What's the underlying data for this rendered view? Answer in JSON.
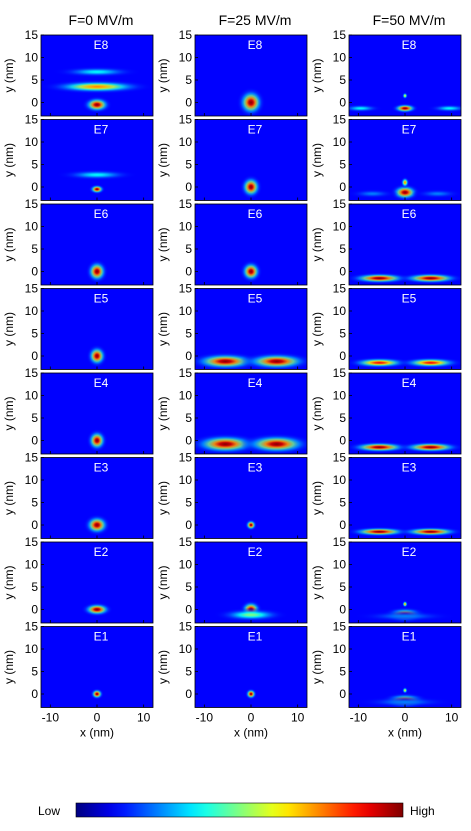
{
  "chart_data": {
    "type": "heatmap",
    "columns": [
      "F=0 MV/m",
      "F=25 MV/m",
      "F=50 MV/m"
    ],
    "rows": [
      "E8",
      "E7",
      "E6",
      "E5",
      "E4",
      "E3",
      "E2",
      "E1"
    ],
    "xlabel": "x (nm)",
    "ylabel": "y (nm)",
    "xlim": [
      -12,
      12
    ],
    "ylim": [
      -3,
      15
    ],
    "x_ticks": [
      "-10",
      "0",
      "10"
    ],
    "y_ticks": [
      "15",
      "10",
      "5",
      "0"
    ],
    "colorbar": {
      "low": "Low",
      "high": "High"
    },
    "panels": [
      [
        {
          "label": "E8",
          "blobs": [
            {
              "x": 0,
              "y": -0.5,
              "sx": 2.0,
              "sy": 1.2,
              "a": 1.0
            },
            {
              "x": 0,
              "y": 3.5,
              "sx": 7.5,
              "sy": 1.0,
              "a": 0.75
            },
            {
              "x": 0,
              "y": 6.8,
              "sx": 6.0,
              "sy": 0.8,
              "a": 0.35
            },
            {
              "x": 0,
              "y": 9.5,
              "sx": 5.0,
              "sy": 0.8,
              "a": 0.15
            }
          ]
        },
        {
          "label": "E7",
          "blobs": [
            {
              "x": 0,
              "y": -0.5,
              "sx": 1.1,
              "sy": 0.7,
              "a": 1.0
            },
            {
              "x": 0,
              "y": 2.7,
              "sx": 5.5,
              "sy": 0.8,
              "a": 0.35
            },
            {
              "x": 0,
              "y": 5.2,
              "sx": 5.0,
              "sy": 0.8,
              "a": 0.15
            }
          ]
        },
        {
          "label": "E6",
          "blobs": [
            {
              "x": 0,
              "y": 0.0,
              "sx": 1.5,
              "sy": 1.7,
              "a": 1.0
            }
          ]
        },
        {
          "label": "E5",
          "blobs": [
            {
              "x": 0,
              "y": 0.0,
              "sx": 1.4,
              "sy": 1.6,
              "a": 1.0
            }
          ]
        },
        {
          "label": "E4",
          "blobs": [
            {
              "x": 0,
              "y": 0.0,
              "sx": 1.4,
              "sy": 1.6,
              "a": 1.0
            }
          ]
        },
        {
          "label": "E3",
          "blobs": [
            {
              "x": 0,
              "y": 0.0,
              "sx": 1.8,
              "sy": 1.5,
              "a": 1.0
            }
          ]
        },
        {
          "label": "E2",
          "blobs": [
            {
              "x": 0,
              "y": 0.0,
              "sx": 2.1,
              "sy": 1.0,
              "a": 1.0
            }
          ]
        },
        {
          "label": "E1",
          "blobs": [
            {
              "x": 0,
              "y": 0.0,
              "sx": 0.9,
              "sy": 0.8,
              "a": 1.0
            }
          ]
        }
      ],
      [
        {
          "label": "E8",
          "blobs": [
            {
              "x": 0,
              "y": 0.0,
              "sx": 1.9,
              "sy": 2.1,
              "a": 1.0
            }
          ]
        },
        {
          "label": "E7",
          "blobs": [
            {
              "x": 0,
              "y": 0.0,
              "sx": 1.5,
              "sy": 1.7,
              "a": 1.0
            }
          ]
        },
        {
          "label": "E6",
          "blobs": [
            {
              "x": 0,
              "y": 0.0,
              "sx": 1.5,
              "sy": 1.6,
              "a": 1.0
            }
          ]
        },
        {
          "label": "E5",
          "blobs": [
            {
              "x": -5.5,
              "y": -1.2,
              "sx": 5.0,
              "sy": 1.3,
              "a": 1.0
            },
            {
              "x": 5.5,
              "y": -1.2,
              "sx": 5.0,
              "sy": 1.3,
              "a": 1.0
            }
          ]
        },
        {
          "label": "E4",
          "blobs": [
            {
              "x": -5.5,
              "y": -0.8,
              "sx": 5.0,
              "sy": 1.5,
              "a": 1.0
            },
            {
              "x": 5.5,
              "y": -0.8,
              "sx": 5.0,
              "sy": 1.5,
              "a": 1.0
            }
          ]
        },
        {
          "label": "E3",
          "blobs": [
            {
              "x": 0,
              "y": 0.0,
              "sx": 0.8,
              "sy": 0.8,
              "a": 1.0
            }
          ]
        },
        {
          "label": "E2",
          "blobs": [
            {
              "x": 0,
              "y": 0.0,
              "sx": 1.5,
              "sy": 1.3,
              "a": 1.0
            },
            {
              "x": 0,
              "y": -1.2,
              "sx": 5.0,
              "sy": 1.0,
              "a": 0.45
            }
          ]
        },
        {
          "label": "E1",
          "blobs": [
            {
              "x": 0,
              "y": 0.0,
              "sx": 0.8,
              "sy": 0.8,
              "a": 1.0
            }
          ]
        }
      ],
      [
        {
          "label": "E8",
          "blobs": [
            {
              "x": 0,
              "y": -1.3,
              "sx": 1.8,
              "sy": 0.7,
              "a": 1.0
            },
            {
              "x": -9.5,
              "y": -1.3,
              "sx": 3.0,
              "sy": 0.6,
              "a": 0.35
            },
            {
              "x": 9.5,
              "y": -1.3,
              "sx": 3.0,
              "sy": 0.6,
              "a": 0.35
            },
            {
              "x": 0,
              "y": 1.5,
              "sx": 0.4,
              "sy": 0.5,
              "a": 0.6
            }
          ]
        },
        {
          "label": "E7",
          "blobs": [
            {
              "x": 0,
              "y": -1.2,
              "sx": 2.0,
              "sy": 1.2,
              "a": 1.0
            },
            {
              "x": 0,
              "y": 1.0,
              "sx": 0.6,
              "sy": 0.8,
              "a": 0.7
            },
            {
              "x": -7.0,
              "y": -1.5,
              "sx": 3.5,
              "sy": 0.7,
              "a": 0.22
            },
            {
              "x": 7.0,
              "y": -1.5,
              "sx": 3.5,
              "sy": 0.7,
              "a": 0.22
            }
          ]
        },
        {
          "label": "E6",
          "blobs": [
            {
              "x": -5.5,
              "y": -1.5,
              "sx": 4.5,
              "sy": 0.8,
              "a": 1.0
            },
            {
              "x": 5.5,
              "y": -1.5,
              "sx": 4.5,
              "sy": 0.8,
              "a": 1.0
            }
          ]
        },
        {
          "label": "E5",
          "blobs": [
            {
              "x": -5.5,
              "y": -1.5,
              "sx": 4.5,
              "sy": 0.8,
              "a": 0.9
            },
            {
              "x": 5.5,
              "y": -1.5,
              "sx": 4.5,
              "sy": 0.8,
              "a": 0.9
            }
          ]
        },
        {
          "label": "E4",
          "blobs": [
            {
              "x": -5.5,
              "y": -1.5,
              "sx": 4.5,
              "sy": 0.8,
              "a": 1.0
            },
            {
              "x": 5.5,
              "y": -1.5,
              "sx": 4.5,
              "sy": 0.8,
              "a": 1.0
            }
          ]
        },
        {
          "label": "E3",
          "blobs": [
            {
              "x": -5.5,
              "y": -1.5,
              "sx": 4.5,
              "sy": 0.7,
              "a": 0.95
            },
            {
              "x": 5.5,
              "y": -1.5,
              "sx": 4.5,
              "sy": 0.7,
              "a": 0.95
            }
          ]
        },
        {
          "label": "E2",
          "blobs": [
            {
              "x": 0,
              "y": -1.2,
              "sx": 3.0,
              "sy": 1.1,
              "a": 1.0
            },
            {
              "x": 0,
              "y": 1.2,
              "sx": 0.4,
              "sy": 0.5,
              "a": 0.7
            },
            {
              "x": 0,
              "y": -1.5,
              "sx": 7.0,
              "sy": 0.8,
              "a": 0.3
            }
          ]
        },
        {
          "label": "E1",
          "blobs": [
            {
              "x": 0,
              "y": -1.5,
              "sx": 3.2,
              "sy": 1.1,
              "a": 1.0
            },
            {
              "x": 0,
              "y": 0.8,
              "sx": 0.4,
              "sy": 0.5,
              "a": 0.6
            },
            {
              "x": 0,
              "y": -1.8,
              "sx": 7.0,
              "sy": 0.8,
              "a": 0.3
            }
          ]
        }
      ]
    ]
  }
}
